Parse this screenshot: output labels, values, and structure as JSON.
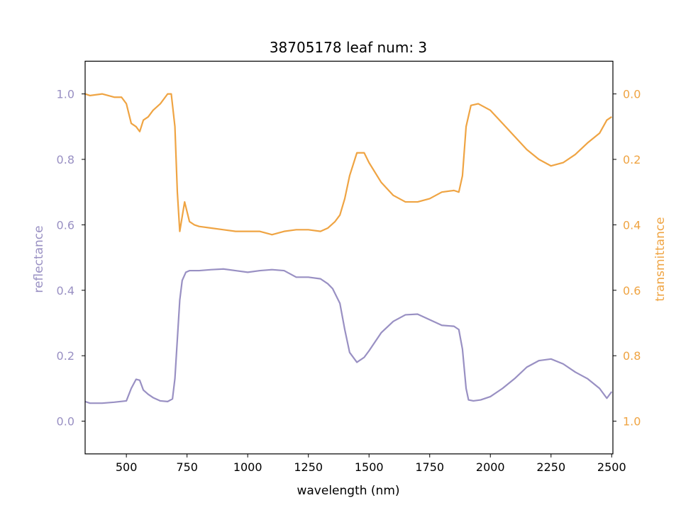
{
  "chart_data": {
    "type": "line",
    "title": "38705178 leaf num: 3",
    "xlabel": "wavelength (nm)",
    "ylabel_left": "reflectance",
    "ylabel_right": "transmittance",
    "xlim": [
      330,
      2505
    ],
    "ylim_left": [
      -0.1,
      1.1
    ],
    "ylim_right": [
      1.1,
      -0.1
    ],
    "right_axis_inverted": true,
    "x_ticks": [
      500,
      750,
      1000,
      1250,
      1500,
      1750,
      2000,
      2250,
      2500
    ],
    "y_ticks_left": [
      0.0,
      0.2,
      0.4,
      0.6,
      0.8,
      1.0
    ],
    "y_ticks_right": [
      0.0,
      0.2,
      0.4,
      0.6,
      0.8,
      1.0
    ],
    "grid": false,
    "colors": {
      "reflectance": "#9990c3",
      "transmittance": "#efa443",
      "frame": "#000000"
    },
    "series": [
      {
        "name": "reflectance",
        "axis": "left",
        "x": [
          330,
          350,
          400,
          450,
          500,
          520,
          540,
          555,
          570,
          590,
          610,
          640,
          670,
          690,
          700,
          710,
          720,
          730,
          745,
          760,
          800,
          850,
          900,
          950,
          1000,
          1050,
          1100,
          1150,
          1200,
          1250,
          1300,
          1330,
          1350,
          1380,
          1400,
          1420,
          1450,
          1480,
          1500,
          1550,
          1600,
          1650,
          1700,
          1750,
          1800,
          1850,
          1870,
          1885,
          1900,
          1910,
          1930,
          1960,
          2000,
          2050,
          2100,
          2150,
          2200,
          2250,
          2300,
          2350,
          2400,
          2450,
          2480,
          2500
        ],
        "y": [
          0.06,
          0.055,
          0.055,
          0.058,
          0.062,
          0.1,
          0.128,
          0.125,
          0.095,
          0.082,
          0.072,
          0.062,
          0.06,
          0.068,
          0.13,
          0.25,
          0.37,
          0.43,
          0.455,
          0.46,
          0.46,
          0.463,
          0.465,
          0.46,
          0.455,
          0.46,
          0.463,
          0.46,
          0.44,
          0.44,
          0.435,
          0.42,
          0.405,
          0.36,
          0.28,
          0.21,
          0.18,
          0.195,
          0.215,
          0.27,
          0.305,
          0.325,
          0.327,
          0.31,
          0.293,
          0.29,
          0.28,
          0.22,
          0.1,
          0.065,
          0.062,
          0.065,
          0.075,
          0.1,
          0.13,
          0.165,
          0.185,
          0.19,
          0.175,
          0.15,
          0.13,
          0.1,
          0.07,
          0.09
        ]
      },
      {
        "name": "transmittance",
        "axis": "right",
        "x": [
          330,
          350,
          400,
          450,
          480,
          500,
          520,
          540,
          555,
          570,
          590,
          610,
          640,
          670,
          685,
          700,
          710,
          720,
          740,
          760,
          780,
          800,
          850,
          900,
          950,
          1000,
          1050,
          1100,
          1150,
          1200,
          1250,
          1300,
          1330,
          1360,
          1380,
          1400,
          1420,
          1450,
          1480,
          1500,
          1550,
          1600,
          1650,
          1700,
          1750,
          1800,
          1850,
          1870,
          1885,
          1900,
          1920,
          1950,
          2000,
          2050,
          2100,
          2150,
          2200,
          2250,
          2300,
          2350,
          2400,
          2450,
          2480,
          2500
        ],
        "y": [
          0.0,
          0.005,
          0.0,
          0.01,
          0.01,
          0.03,
          0.09,
          0.1,
          0.115,
          0.08,
          0.07,
          0.05,
          0.03,
          0.0,
          0.0,
          0.1,
          0.3,
          0.42,
          0.33,
          0.39,
          0.4,
          0.405,
          0.41,
          0.415,
          0.42,
          0.42,
          0.42,
          0.43,
          0.42,
          0.415,
          0.415,
          0.42,
          0.41,
          0.39,
          0.37,
          0.32,
          0.25,
          0.18,
          0.18,
          0.21,
          0.27,
          0.31,
          0.33,
          0.33,
          0.32,
          0.3,
          0.295,
          0.3,
          0.25,
          0.1,
          0.035,
          0.03,
          0.05,
          0.09,
          0.13,
          0.17,
          0.2,
          0.22,
          0.21,
          0.185,
          0.15,
          0.12,
          0.08,
          0.07
        ]
      }
    ]
  }
}
